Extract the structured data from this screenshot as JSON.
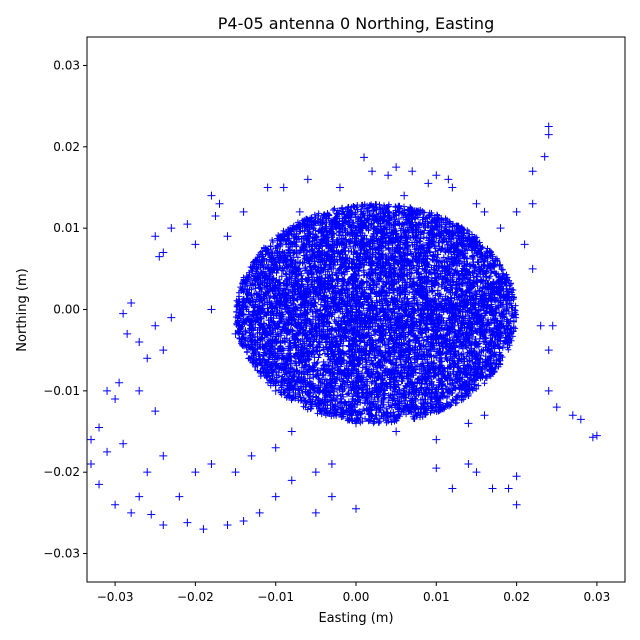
{
  "chart_data": {
    "type": "scatter",
    "title": "P4-05 antenna 0 Northing, Easting",
    "xlabel": "Easting (m)",
    "ylabel": "Northing (m)",
    "xlim": [
      -0.0335,
      0.0335
    ],
    "ylim": [
      -0.0335,
      0.0335
    ],
    "xticks": [
      {
        "value": -0.03,
        "label": "−0.03"
      },
      {
        "value": -0.02,
        "label": "−0.02"
      },
      {
        "value": -0.01,
        "label": "−0.01"
      },
      {
        "value": 0.0,
        "label": "0.00"
      },
      {
        "value": 0.01,
        "label": "0.01"
      },
      {
        "value": 0.02,
        "label": "0.02"
      },
      {
        "value": 0.03,
        "label": "0.03"
      }
    ],
    "yticks": [
      {
        "value": -0.03,
        "label": "−0.03"
      },
      {
        "value": -0.02,
        "label": "−0.02"
      },
      {
        "value": -0.01,
        "label": "−0.01"
      },
      {
        "value": 0.0,
        "label": "0.00"
      },
      {
        "value": 0.01,
        "label": "0.01"
      },
      {
        "value": 0.02,
        "label": "0.02"
      },
      {
        "value": 0.03,
        "label": "0.03"
      }
    ],
    "marker": "+",
    "color": "#0000ff",
    "grid": false,
    "legend": "none",
    "series": [
      {
        "points": [
          [
            0.0,
            0.0
          ],
          [
            -0.005,
            0.002
          ],
          [
            0.005,
            -0.002
          ],
          [
            0.002,
            0.005
          ],
          [
            -0.002,
            -0.006
          ],
          [
            -0.012,
            0.001
          ],
          [
            0.012,
            -0.001
          ],
          [
            -0.008,
            0.006
          ],
          [
            0.008,
            0.007
          ],
          [
            -0.006,
            -0.008
          ],
          [
            0.007,
            -0.009
          ],
          [
            -0.015,
            -0.003
          ],
          [
            0.015,
            0.004
          ],
          [
            -0.018,
            0.0
          ],
          [
            0.018,
            -0.003
          ],
          [
            0.0,
            0.009
          ],
          [
            0.003,
            -0.01
          ],
          [
            -0.01,
            -0.01
          ],
          [
            0.01,
            0.009
          ],
          [
            -0.003,
            0.01
          ],
          [
            0.004,
            0.012
          ],
          [
            -0.007,
            0.012
          ],
          [
            0.006,
            0.014
          ],
          [
            -0.002,
            0.015
          ],
          [
            0.001,
            0.0187
          ],
          [
            0.024,
            0.0225
          ],
          [
            0.024,
            0.0215
          ],
          [
            0.0235,
            0.0188
          ],
          [
            0.022,
            0.017
          ],
          [
            0.022,
            0.013
          ],
          [
            0.02,
            0.012
          ],
          [
            0.021,
            0.008
          ],
          [
            0.022,
            0.005
          ],
          [
            0.023,
            -0.002
          ],
          [
            0.024,
            -0.005
          ],
          [
            0.0245,
            -0.002
          ],
          [
            0.024,
            -0.01
          ],
          [
            0.025,
            -0.012
          ],
          [
            0.027,
            -0.013
          ],
          [
            0.028,
            -0.0135
          ],
          [
            0.03,
            -0.0155
          ],
          [
            0.0295,
            -0.0157
          ],
          [
            0.02,
            -0.0205
          ],
          [
            0.02,
            -0.024
          ],
          [
            0.019,
            -0.022
          ],
          [
            0.017,
            -0.022
          ],
          [
            0.015,
            -0.02
          ],
          [
            0.014,
            -0.019
          ],
          [
            0.012,
            -0.022
          ],
          [
            0.01,
            -0.0195
          ],
          [
            0.014,
            -0.014
          ],
          [
            0.016,
            -0.013
          ],
          [
            0.01,
            -0.016
          ],
          [
            0.005,
            -0.015
          ],
          [
            0.0,
            -0.014
          ],
          [
            -0.003,
            -0.019
          ],
          [
            -0.005,
            -0.02
          ],
          [
            -0.003,
            -0.023
          ],
          [
            -0.005,
            -0.025
          ],
          [
            0.0,
            -0.0245
          ],
          [
            -0.008,
            -0.021
          ],
          [
            -0.01,
            -0.023
          ],
          [
            -0.012,
            -0.025
          ],
          [
            -0.014,
            -0.026
          ],
          [
            -0.016,
            -0.0265
          ],
          [
            -0.019,
            -0.027
          ],
          [
            -0.021,
            -0.0262
          ],
          [
            -0.024,
            -0.0265
          ],
          [
            -0.0255,
            -0.0252
          ],
          [
            -0.028,
            -0.025
          ],
          [
            -0.03,
            -0.024
          ],
          [
            -0.032,
            -0.0215
          ],
          [
            -0.033,
            -0.019
          ],
          [
            -0.031,
            -0.0175
          ],
          [
            -0.033,
            -0.016
          ],
          [
            -0.032,
            -0.0145
          ],
          [
            -0.029,
            -0.0165
          ],
          [
            -0.03,
            -0.011
          ],
          [
            -0.031,
            -0.01
          ],
          [
            -0.0295,
            -0.009
          ],
          [
            -0.027,
            -0.01
          ],
          [
            -0.025,
            -0.0125
          ],
          [
            -0.026,
            -0.006
          ],
          [
            -0.025,
            -0.002
          ],
          [
            -0.024,
            -0.005
          ],
          [
            -0.029,
            -0.0005
          ],
          [
            -0.028,
            0.0008
          ],
          [
            -0.0285,
            -0.003
          ],
          [
            -0.027,
            -0.004
          ],
          [
            -0.023,
            -0.001
          ],
          [
            -0.025,
            0.009
          ],
          [
            -0.024,
            0.007
          ],
          [
            -0.0245,
            0.0065
          ],
          [
            -0.023,
            0.01
          ],
          [
            -0.021,
            0.0105
          ],
          [
            -0.02,
            0.008
          ],
          [
            -0.018,
            0.014
          ],
          [
            -0.017,
            0.013
          ],
          [
            -0.0175,
            0.0115
          ],
          [
            -0.016,
            0.009
          ],
          [
            -0.014,
            0.012
          ],
          [
            -0.011,
            0.015
          ],
          [
            -0.009,
            0.015
          ],
          [
            -0.006,
            0.016
          ],
          [
            0.002,
            0.017
          ],
          [
            0.004,
            0.0165
          ],
          [
            0.005,
            0.0175
          ],
          [
            0.007,
            0.017
          ],
          [
            0.009,
            0.0155
          ],
          [
            0.01,
            0.0165
          ],
          [
            0.0115,
            0.016
          ],
          [
            0.012,
            0.015
          ],
          [
            0.015,
            0.013
          ],
          [
            0.016,
            0.012
          ],
          [
            0.018,
            0.01
          ],
          [
            -0.02,
            -0.02
          ],
          [
            -0.022,
            -0.023
          ],
          [
            -0.018,
            -0.019
          ],
          [
            -0.015,
            -0.02
          ],
          [
            -0.013,
            -0.018
          ],
          [
            -0.026,
            -0.02
          ],
          [
            -0.027,
            -0.023
          ],
          [
            -0.024,
            -0.018
          ],
          [
            -0.01,
            -0.017
          ],
          [
            -0.008,
            -0.015
          ]
        ]
      }
    ]
  }
}
